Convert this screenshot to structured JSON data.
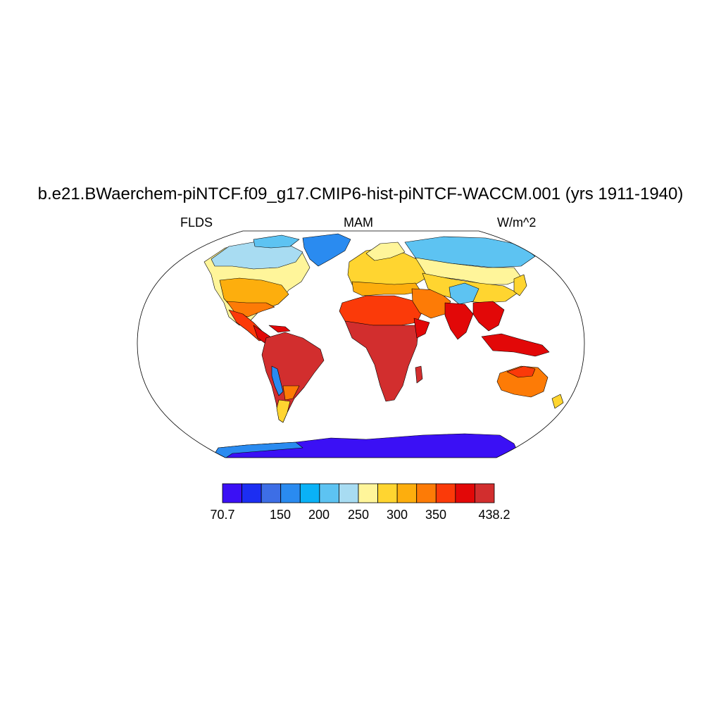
{
  "title": "b.e21.BWaerchem-piNTCF.f09_g17.CMIP6-hist-piNTCF-WACCM.001 (yrs 1911-1940)",
  "left_label": "FLDS",
  "center_label": "MAM",
  "right_label": "W/m^2",
  "colorbar": {
    "min_label": "70.7",
    "max_label": "438.2",
    "tick_labels": [
      "150",
      "200",
      "250",
      "300",
      "350"
    ],
    "colors": [
      "#3b10f5",
      "#1c2ef2",
      "#3d6ee6",
      "#2a8bf0",
      "#0ab2f7",
      "#5dc3f2",
      "#a8dcf2",
      "#fff59a",
      "#ffd530",
      "#fdae0d",
      "#fd7b06",
      "#fb3a09",
      "#e20808",
      "#d22e2e"
    ]
  },
  "map": {
    "projection": "Robinson",
    "ocean_color": "#ffffff",
    "land_colors": {
      "polar": "#3b10f5",
      "greenland": "#2a8bf0",
      "arctic": "#5dc3f2",
      "subarctic": "#a8dcf2",
      "cool": "#fff59a",
      "mild": "#ffd530",
      "warm": "#fdae0d",
      "hot": "#fd7b06",
      "hotter": "#fb3a09",
      "tropical": "#e20808",
      "equatorial": "#d22e2e",
      "tibet": "#5dc3f2"
    }
  }
}
